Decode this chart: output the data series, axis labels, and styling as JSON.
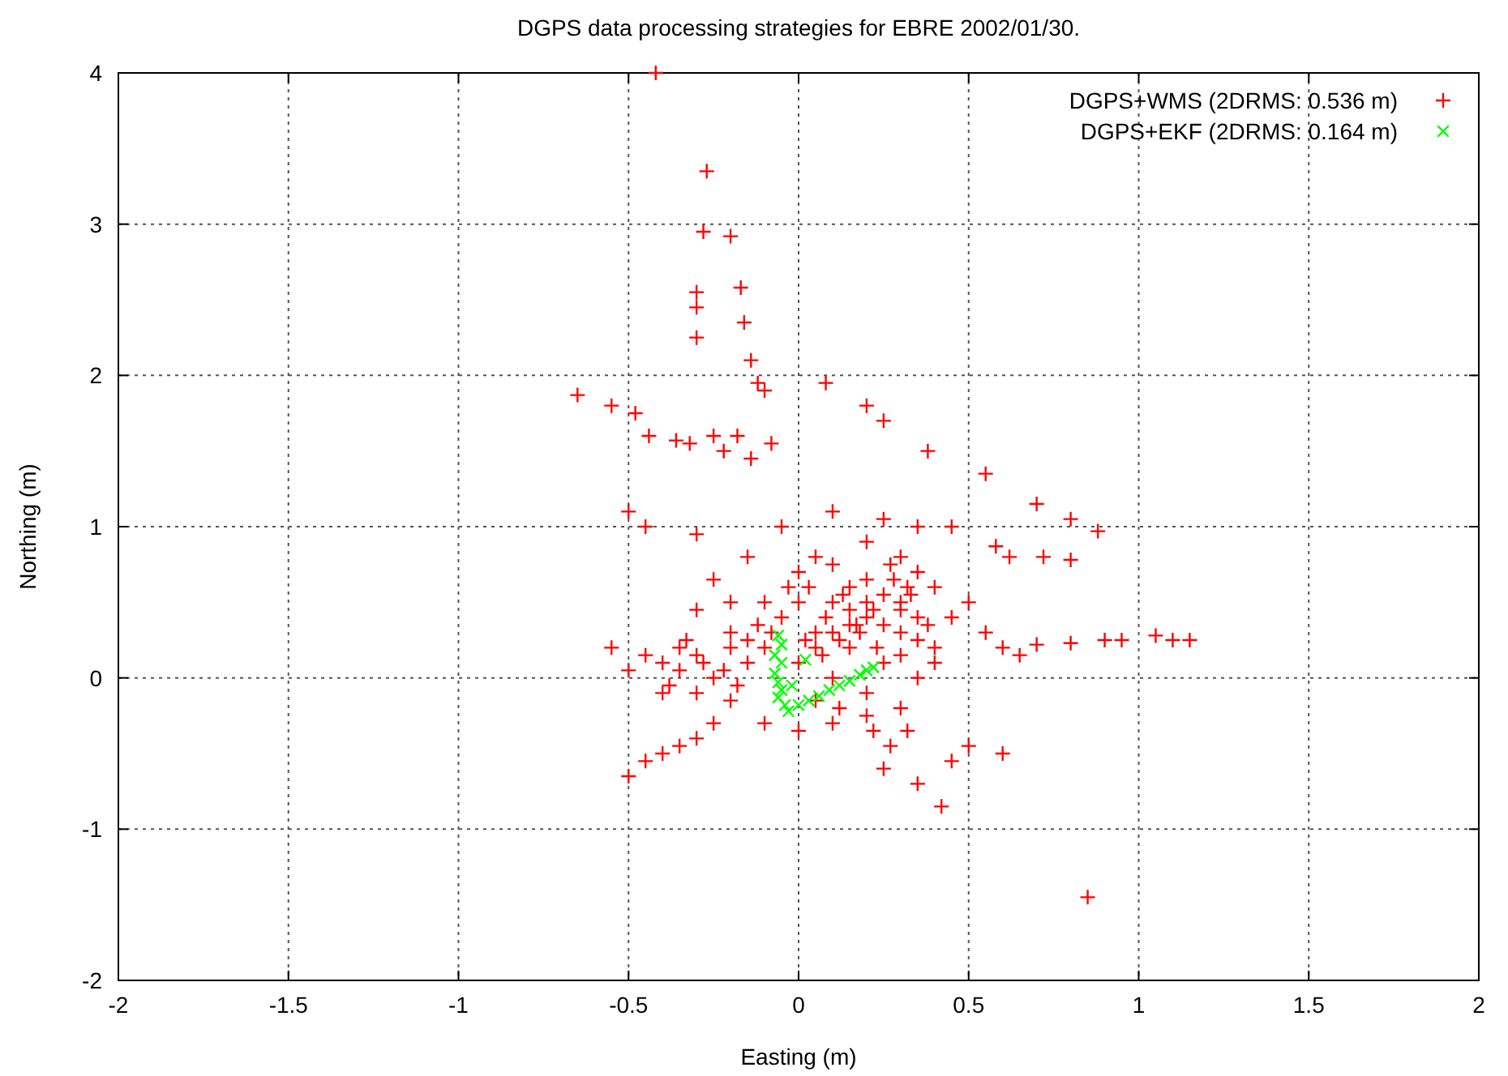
{
  "chart_data": {
    "type": "scatter",
    "title": "DGPS data processing strategies for EBRE 2002/01/30.",
    "xlabel": "Easting (m)",
    "ylabel": "Northing (m)",
    "xlim": [
      -2,
      2
    ],
    "ylim": [
      -2,
      4
    ],
    "xticks": [
      -2,
      -1.5,
      -1,
      -0.5,
      0,
      0.5,
      1,
      1.5,
      2
    ],
    "yticks": [
      -2,
      -1,
      0,
      1,
      2,
      3,
      4
    ],
    "grid": true,
    "legend": "top right",
    "series": [
      {
        "name": "DGPS+WMS (2DRMS: 0.536 m)",
        "color": "#ff0000",
        "marker": "cross",
        "x": [
          -0.42,
          -0.27,
          -0.28,
          -0.2,
          -0.3,
          -0.3,
          -0.3,
          -0.17,
          -0.16,
          -0.14,
          -0.12,
          -0.1,
          -0.65,
          -0.55,
          -0.48,
          -0.44,
          -0.36,
          -0.32,
          -0.25,
          -0.22,
          -0.18,
          -0.14,
          -0.08,
          0.08,
          0.2,
          0.25,
          0.38,
          0.45,
          0.55,
          -0.5,
          -0.45,
          -0.3,
          0.58,
          0.7,
          0.8,
          0.88,
          0.62,
          0.72,
          0.8,
          0.55,
          0.6,
          0.65,
          0.7,
          0.8,
          0.9,
          0.95,
          1.05,
          1.1,
          1.15,
          0.85,
          0.6,
          0.42,
          0.45,
          0.5,
          0.35,
          0.25,
          -0.5,
          -0.45,
          -0.4,
          -0.35,
          -0.3,
          -0.25,
          -0.55,
          -0.5,
          -0.45,
          -0.4,
          -0.3,
          -0.2,
          -0.1,
          0,
          0.2,
          0.3,
          0.35,
          0.4,
          0.1,
          0.2,
          0.3,
          0.25,
          0.15,
          0.05,
          -0.05,
          -0.15,
          -0.2,
          -0.1,
          0,
          0.1,
          0.2,
          0.3,
          0.35,
          0.4,
          0.45,
          0.5,
          0.3,
          0.15,
          0.05,
          -0.05,
          0.1,
          0.25,
          0.35,
          -0.15,
          -0.25,
          -0.3,
          -0.35,
          -0.1,
          0,
          0.1,
          0.2,
          0.05,
          0.15,
          0.25,
          0.35,
          0.2,
          0.1,
          -0.2,
          0,
          0.12,
          0.3,
          0.05,
          0.1,
          0.15,
          0.2,
          0.25,
          0.3,
          0.35,
          0.08,
          0.13,
          0.18,
          0.23,
          0.28,
          0.33,
          0.38,
          0.03,
          0.07,
          0.17,
          0.22,
          0.27,
          0.32,
          -0.4,
          -0.35,
          -0.3,
          -0.25,
          -0.2,
          -0.15,
          -0.38,
          -0.33,
          -0.28,
          -0.22,
          -0.18,
          -0.12,
          -0.08,
          -0.03,
          0.02,
          0.12,
          0.22,
          0.27,
          0.32,
          0.4
        ],
        "values": [
          4.0,
          3.35,
          2.95,
          2.92,
          2.55,
          2.45,
          2.25,
          2.58,
          2.35,
          2.1,
          1.95,
          1.9,
          1.87,
          1.8,
          1.75,
          1.6,
          1.57,
          1.55,
          1.6,
          1.5,
          1.6,
          1.45,
          1.55,
          1.95,
          1.8,
          1.7,
          1.5,
          1.0,
          1.35,
          1.1,
          1.0,
          0.95,
          0.87,
          1.15,
          1.05,
          0.97,
          0.8,
          0.8,
          0.78,
          0.3,
          0.2,
          0.15,
          0.22,
          0.23,
          0.25,
          0.25,
          0.28,
          0.25,
          0.25,
          -1.45,
          -0.5,
          -0.85,
          -0.55,
          -0.45,
          -0.7,
          -0.6,
          -0.65,
          -0.55,
          -0.5,
          -0.45,
          -0.4,
          -0.3,
          0.2,
          0.05,
          0.15,
          -0.1,
          -0.1,
          0.3,
          0.5,
          0.7,
          0.9,
          0.8,
          0.7,
          0.6,
          0.5,
          0.4,
          0.3,
          0.1,
          0.2,
          0.3,
          0.4,
          0.1,
          -0.15,
          -0.3,
          -0.35,
          -0.3,
          -0.25,
          -0.2,
          0.0,
          0.2,
          0.4,
          0.5,
          0.5,
          0.6,
          0.8,
          1.0,
          1.1,
          1.05,
          1.0,
          0.8,
          0.65,
          0.45,
          0.2,
          0.2,
          0.1,
          0.0,
          -0.1,
          -0.15,
          0.35,
          0.55,
          0.4,
          0.65,
          0.75,
          0.5,
          0.5,
          0.25,
          0.15,
          0.2,
          0.3,
          0.45,
          0.5,
          0.35,
          0.45,
          0.25,
          0.4,
          0.55,
          0.3,
          0.2,
          0.65,
          0.55,
          0.35,
          0.6,
          0.15,
          0.35,
          0.45,
          0.75,
          0.6,
          0.1,
          0.05,
          0.15,
          0.0,
          0.2,
          0.25,
          -0.05,
          0.25,
          0.1,
          0.05,
          -0.05,
          0.35,
          0.3,
          0.6,
          0.25,
          -0.2,
          -0.35,
          -0.45,
          -0.35,
          0.1
        ]
      },
      {
        "name": "DGPS+EKF (2DRMS: 0.164 m)",
        "color": "#00ff00",
        "marker": "x",
        "x": [
          -0.06,
          -0.05,
          -0.07,
          -0.05,
          -0.07,
          -0.06,
          -0.05,
          -0.06,
          -0.04,
          -0.03,
          0.0,
          0.03,
          0.06,
          0.09,
          0.12,
          0.15,
          0.18,
          0.2,
          0.22,
          -0.02,
          0.02
        ],
        "values": [
          0.28,
          0.22,
          0.15,
          0.1,
          0.03,
          -0.03,
          -0.08,
          -0.13,
          -0.18,
          -0.22,
          -0.18,
          -0.15,
          -0.12,
          -0.08,
          -0.05,
          -0.02,
          0.02,
          0.05,
          0.07,
          -0.05,
          0.12
        ]
      }
    ]
  }
}
